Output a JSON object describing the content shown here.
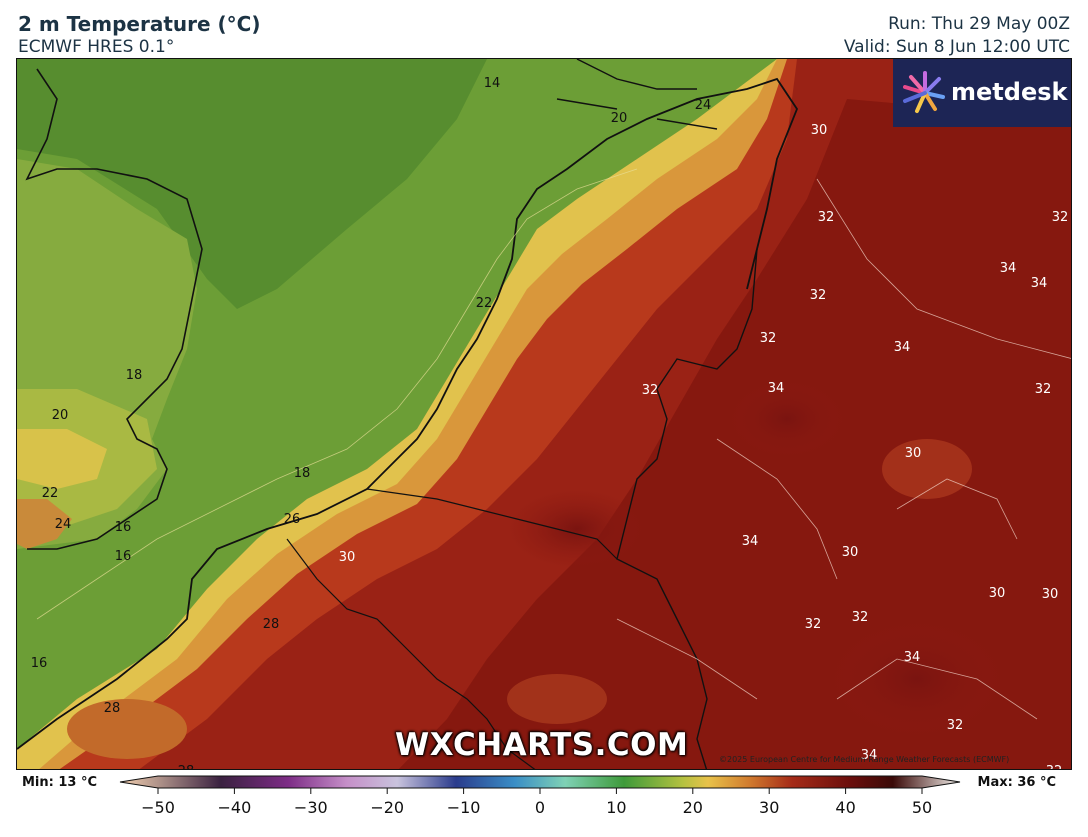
{
  "header": {
    "title": "2 m Temperature (°C)",
    "model": "ECMWF HRES 0.1°",
    "run": "Run: Thu 29 May 00Z",
    "valid": "Valid: Sun 8 Jun 12:00 UTC"
  },
  "brand": {
    "logo_text": "metdesk",
    "watermark": "WXCHARTS.COM"
  },
  "copyright": "©2025 European Centre for Medium-Range Weather Forecasts (ECMWF)",
  "colorbar": {
    "min_label": "Min: 13 °C",
    "max_label": "Max: 36 °C",
    "ticks": [
      "−50",
      "−40",
      "−30",
      "−20",
      "−10",
      "0",
      "10",
      "20",
      "30",
      "40",
      "50"
    ]
  },
  "map": {
    "contour_labels": [
      "14",
      "24",
      "20",
      "30",
      "32",
      "32",
      "34",
      "34",
      "32",
      "22",
      "32",
      "18",
      "34",
      "20",
      "32",
      "34",
      "32",
      "30",
      "18",
      "22",
      "24",
      "16",
      "26",
      "34",
      "30",
      "16",
      "30",
      "30",
      "30",
      "32",
      "32",
      "28",
      "34",
      "16",
      "32",
      "28",
      "34",
      "28",
      "32"
    ],
    "colors": {
      "sea_green": "#5d9433",
      "land_hot": "#8e1a12",
      "land_warm": "#b8391c",
      "coast_yellow": "#e0c24a",
      "logo_bg": "#1d2555"
    }
  }
}
